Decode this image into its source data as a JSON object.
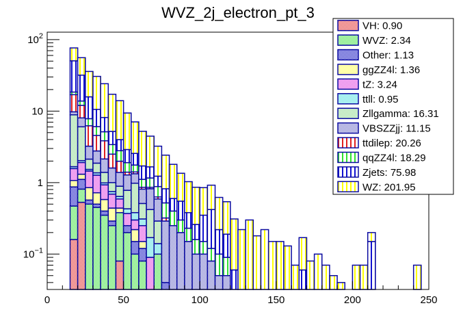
{
  "chart_data": {
    "type": "bar",
    "stacked": true,
    "title": "WVZ_2j_electron_pt_3",
    "xlabel": "",
    "ylabel": "",
    "xlim": [
      0,
      250
    ],
    "ylim": [
      0.032,
      127
    ],
    "yscale": "log",
    "bin_width": 5,
    "x_ticks": [
      "0",
      "50",
      "100",
      "150",
      "200",
      "250"
    ],
    "x_tick_values": [
      0,
      50,
      100,
      150,
      200,
      250
    ],
    "y_ticks": [
      {
        "value": 100,
        "label": "10^2"
      },
      {
        "value": 10,
        "label": "10"
      },
      {
        "value": 1,
        "label": "1"
      },
      {
        "value": 0.1,
        "label": "10^-1"
      }
    ],
    "legend_position": "top-right",
    "series": [
      {
        "name": "VH",
        "legend": "VH: 0.90",
        "color": "#e03030",
        "pattern": "check",
        "bins": {
          "15": 0.16,
          "20": 0.53,
          "45": 0.08
        }
      },
      {
        "name": "WVZ",
        "legend": "WVZ: 2.34",
        "color": "#40e040",
        "pattern": "check",
        "bins": {
          "15": 0.31,
          "20": 0.28,
          "25": 0.5,
          "30": 0.45,
          "35": 0.35,
          "40": 0.25,
          "45": 0.3,
          "50": 0.2,
          "55": 0.1,
          "60": 0.08,
          "70": 0.1
        }
      },
      {
        "name": "Other",
        "legend": "Other: 1.13",
        "color": "#1010c0",
        "pattern": "check",
        "bins": {
          "15": 0.4,
          "20": 0.3,
          "25": 0.07,
          "30": 0.05,
          "35": 0.05,
          "40": 0.04,
          "50": 0.05,
          "55": 0.05,
          "60": 0.04,
          "75": 0.04
        }
      },
      {
        "name": "ggZZ4l",
        "legend": "ggZZ4l: 1.36",
        "color": "#ffff50",
        "pattern": "check",
        "bins": {
          "15": 0.2,
          "20": 0.2,
          "25": 0.28,
          "30": 0.22,
          "35": 0.18,
          "40": 0.15,
          "45": 0.06,
          "55": 0.07,
          "60": 0.03,
          "65": 0.03
        }
      },
      {
        "name": "tZ",
        "legend": "tZ: 3.24",
        "color": "#e040e0",
        "pattern": "check",
        "bins": {
          "15": 0.5,
          "20": 0.6,
          "25": 0.6,
          "30": 0.55,
          "35": 0.35,
          "40": 0.25,
          "45": 0.15,
          "50": 0.12,
          "55": 0.08,
          "60": 0.1,
          "65": 0.06
        }
      },
      {
        "name": "ttll",
        "legend": "ttll: 0.95",
        "color": "#50e0e0",
        "pattern": "check",
        "bins": {
          "15": 0.1,
          "20": 0.12,
          "25": 0.08,
          "30": 0.1,
          "35": 0.06,
          "40": 0.06,
          "45": 0.05,
          "50": 0.06,
          "55": 0.08,
          "60": 0.06,
          "65": 0.08,
          "70": 0.04
        }
      },
      {
        "name": "Zllgamma",
        "legend": "Zllgamma: 16.31",
        "color": "#90d890",
        "pattern": "check",
        "bins": {
          "15": 7.2,
          "20": 4.0,
          "25": 0.6,
          "30": 0.5,
          "35": 0.4,
          "40": 0.25,
          "45": 0.25,
          "50": 0.35,
          "55": 0.6,
          "60": 0.2,
          "65": 0.25,
          "70": 0.15
        }
      },
      {
        "name": "VBSZZjj",
        "legend": "VBSZZjj: 11.15",
        "color": "#7070c8",
        "pattern": "check",
        "bins": {
          "15": 0.9,
          "20": 2.0,
          "25": 1.1,
          "30": 0.9,
          "35": 0.75,
          "40": 0.6,
          "45": 0.5,
          "50": 0.5,
          "55": 0.35,
          "60": 0.3,
          "65": 0.4,
          "70": 0.3,
          "75": 0.25,
          "80": 0.25,
          "85": 0.2,
          "90": 0.15,
          "95": 0.1,
          "100": 0.1,
          "105": 0.08,
          "110": 0.05,
          "115": 0.05
        }
      },
      {
        "name": "ttdilep",
        "legend": "ttdilep: 20.26",
        "color": "#e02020",
        "pattern": "vlines",
        "bins": {
          "15": 7.2,
          "20": 4.0,
          "25": 3.0,
          "30": 1.8,
          "35": 1.7,
          "40": 0.9,
          "45": 0.6,
          "50": 0.12,
          "55": 0.08,
          "60": 0.05,
          "65": 0.04,
          "70": 0.04,
          "75": 0.03
        }
      },
      {
        "name": "qqZZ4l",
        "legend": "qqZZ4l: 18.29",
        "color": "#30e030",
        "pattern": "vlines",
        "bins": {
          "15": 1.5,
          "20": 1.8,
          "25": 1.6,
          "30": 1.5,
          "35": 1.3,
          "40": 0.9,
          "45": 0.8,
          "50": 0.5,
          "55": 0.35,
          "60": 0.25,
          "65": 0.3,
          "70": 0.25,
          "75": 0.2,
          "80": 0.15,
          "85": 0.1,
          "90": 0.08,
          "95": 0.06,
          "100": 0.05,
          "105": 0.04,
          "110": 0.05,
          "115": 0.04,
          "120": 0.03,
          "125": 0.02
        }
      },
      {
        "name": "Zjets",
        "legend": "Zjets: 75.98",
        "color": "#1010d0",
        "pattern": "vlines",
        "bins": {
          "15": 32,
          "20": 18,
          "25": 8,
          "30": 4.5,
          "35": 3.0,
          "40": 1.8,
          "45": 1.2,
          "50": 1.0,
          "55": 0.8,
          "60": 0.6,
          "65": 0.5,
          "70": 0.35,
          "75": 0.3,
          "80": 0.2,
          "85": 0.25,
          "90": 0.15,
          "95": 0.1,
          "100": 0.2,
          "105": 0.3,
          "110": 0.12,
          "115": 0.1,
          "120": 0.03,
          "150": 0.03,
          "165": 0.06,
          "210": 0.15
        }
      },
      {
        "name": "WZ",
        "legend": "WZ: 201.95",
        "color": "#ffff00",
        "pattern": "vlines",
        "bins": {
          "15": 26,
          "20": 24,
          "25": 20,
          "30": 20,
          "35": 16,
          "40": 12,
          "45": 10,
          "50": 6.5,
          "55": 4.5,
          "60": 3.5,
          "65": 2.8,
          "70": 2.0,
          "75": 1.6,
          "80": 1.2,
          "85": 0.8,
          "90": 0.65,
          "95": 0.6,
          "100": 0.5,
          "105": 0.5,
          "110": 0.4,
          "115": 0.35,
          "120": 0.25,
          "125": 0.2,
          "130": 0.3,
          "135": 0.18,
          "140": 0.22,
          "145": 0.15,
          "150": 0.12,
          "155": 0.13,
          "160": 0.07,
          "165": 0.11,
          "170": 0.08,
          "175": 0.1,
          "180": 0.07,
          "185": 0.05,
          "190": 0.04,
          "200": 0.07,
          "205": 0.07,
          "210": 0.05,
          "240": 0.07
        }
      }
    ]
  }
}
